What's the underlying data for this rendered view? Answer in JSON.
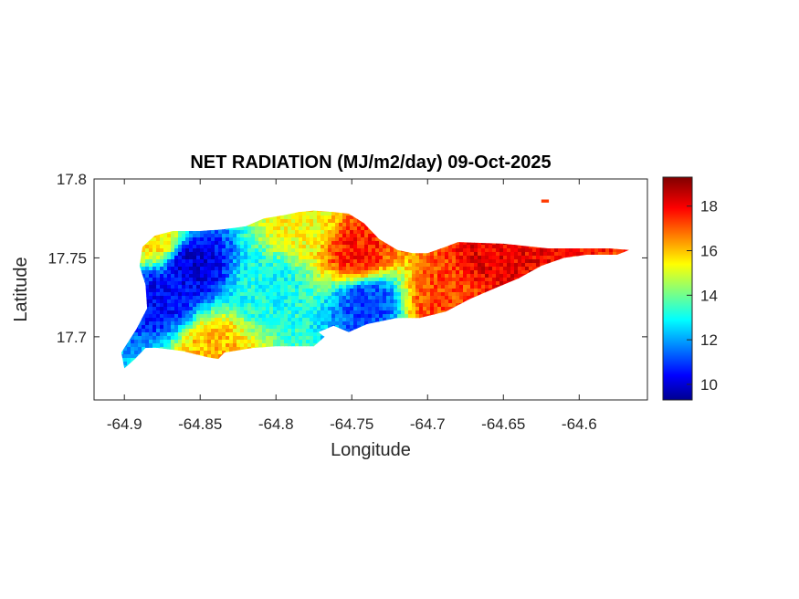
{
  "chart_data": {
    "type": "heatmap",
    "title": "NET RADIATION (MJ/m2/day) 09-Oct-2025",
    "xlabel": "Longitude",
    "ylabel": "Latitude",
    "xlim": [
      -64.92,
      -64.555
    ],
    "ylim": [
      17.66,
      17.8
    ],
    "x_ticks": [
      -64.9,
      -64.85,
      -64.8,
      -64.75,
      -64.7,
      -64.65,
      -64.6
    ],
    "x_tick_labels": [
      "-64.9",
      "-64.85",
      "-64.8",
      "-64.75",
      "-64.7",
      "-64.65",
      "-64.6"
    ],
    "y_ticks": [
      17.7,
      17.75,
      17.8
    ],
    "y_tick_labels": [
      "17.7",
      "17.75",
      "17.8"
    ],
    "colormap": "jet",
    "clim": [
      9.3,
      19.3
    ],
    "colorbar_ticks": [
      10,
      12,
      14,
      16,
      18
    ],
    "colorbar_tick_labels": [
      "10",
      "12",
      "14",
      "16",
      "18"
    ],
    "grid": false,
    "island_outline": [
      [
        -64.9,
        17.68
      ],
      [
        -64.893,
        17.686
      ],
      [
        -64.886,
        17.693
      ],
      [
        -64.878,
        17.693
      ],
      [
        -64.862,
        17.691
      ],
      [
        -64.845,
        17.687
      ],
      [
        -64.838,
        17.686
      ],
      [
        -64.834,
        17.69
      ],
      [
        -64.815,
        17.693
      ],
      [
        -64.8,
        17.694
      ],
      [
        -64.785,
        17.694
      ],
      [
        -64.775,
        17.694
      ],
      [
        -64.768,
        17.7
      ],
      [
        -64.772,
        17.703
      ],
      [
        -64.762,
        17.707
      ],
      [
        -64.752,
        17.703
      ],
      [
        -64.74,
        17.708
      ],
      [
        -64.72,
        17.712
      ],
      [
        -64.705,
        17.712
      ],
      [
        -64.688,
        17.716
      ],
      [
        -64.672,
        17.724
      ],
      [
        -64.655,
        17.731
      ],
      [
        -64.64,
        17.737
      ],
      [
        -64.625,
        17.745
      ],
      [
        -64.61,
        17.75
      ],
      [
        -64.595,
        17.752
      ],
      [
        -64.575,
        17.752
      ],
      [
        -64.567,
        17.755
      ],
      [
        -64.58,
        17.756
      ],
      [
        -64.595,
        17.756
      ],
      [
        -64.62,
        17.756
      ],
      [
        -64.65,
        17.759
      ],
      [
        -64.68,
        17.76
      ],
      [
        -64.688,
        17.757
      ],
      [
        -64.7,
        17.753
      ],
      [
        -64.71,
        17.753
      ],
      [
        -64.72,
        17.755
      ],
      [
        -64.732,
        17.762
      ],
      [
        -64.742,
        17.772
      ],
      [
        -64.752,
        17.778
      ],
      [
        -64.762,
        17.779
      ],
      [
        -64.775,
        17.78
      ],
      [
        -64.785,
        17.779
      ],
      [
        -64.795,
        17.777
      ],
      [
        -64.808,
        17.775
      ],
      [
        -64.82,
        17.77
      ],
      [
        -64.835,
        17.768
      ],
      [
        -64.85,
        17.767
      ],
      [
        -64.868,
        17.767
      ],
      [
        -64.88,
        17.764
      ],
      [
        -64.888,
        17.757
      ],
      [
        -64.89,
        17.745
      ],
      [
        -64.886,
        17.733
      ],
      [
        -64.885,
        17.718
      ],
      [
        -64.892,
        17.705
      ],
      [
        -64.902,
        17.69
      ]
    ],
    "islet_outline": [
      [
        -64.625,
        17.787
      ],
      [
        -64.62,
        17.787
      ],
      [
        -64.62,
        17.785
      ],
      [
        -64.625,
        17.785
      ]
    ],
    "hotspots": [
      {
        "lon": -64.855,
        "lat": 17.746,
        "value": 10.2
      },
      {
        "lon": -64.875,
        "lat": 17.727,
        "value": 10.5
      },
      {
        "lon": -64.74,
        "lat": 17.722,
        "value": 11.2
      },
      {
        "lon": -64.805,
        "lat": 17.73,
        "value": 13.2
      },
      {
        "lon": -64.745,
        "lat": 17.752,
        "value": 17.8
      },
      {
        "lon": -64.655,
        "lat": 17.754,
        "value": 18.2
      },
      {
        "lon": -64.69,
        "lat": 17.723,
        "value": 17.4
      },
      {
        "lon": -64.785,
        "lat": 17.772,
        "value": 15.5
      },
      {
        "lon": -64.88,
        "lat": 17.762,
        "value": 15.8
      },
      {
        "lon": -64.84,
        "lat": 17.692,
        "value": 16.2
      }
    ]
  }
}
